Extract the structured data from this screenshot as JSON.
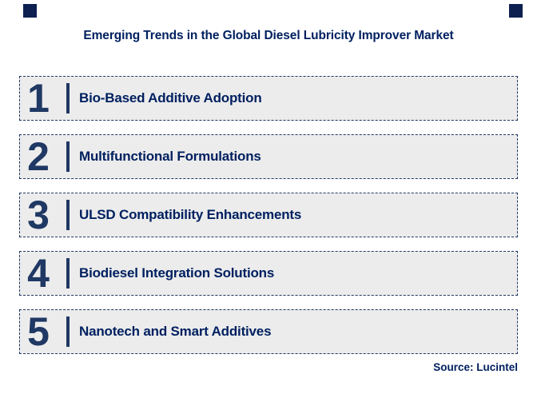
{
  "header": {
    "title": "Emerging Trends in the Global Diesel Lubricity Improver Market"
  },
  "trends": [
    {
      "number": "1",
      "label": "Bio-Based Additive Adoption"
    },
    {
      "number": "2",
      "label": "Multifunctional Formulations"
    },
    {
      "number": "3",
      "label": "ULSD Compatibility Enhancements"
    },
    {
      "number": "4",
      "label": "Biodiesel Integration Solutions"
    },
    {
      "number": "5",
      "label": "Nanotech and Smart Additives"
    }
  ],
  "footer": {
    "source": "Source: Lucintel"
  },
  "colors": {
    "navy_text": "#002060",
    "navy_number": "#1f3864",
    "box_background": "#ececec",
    "dashed_border": "#1f3864",
    "corner_square": "#0d2050",
    "page_background": "#ffffff"
  }
}
